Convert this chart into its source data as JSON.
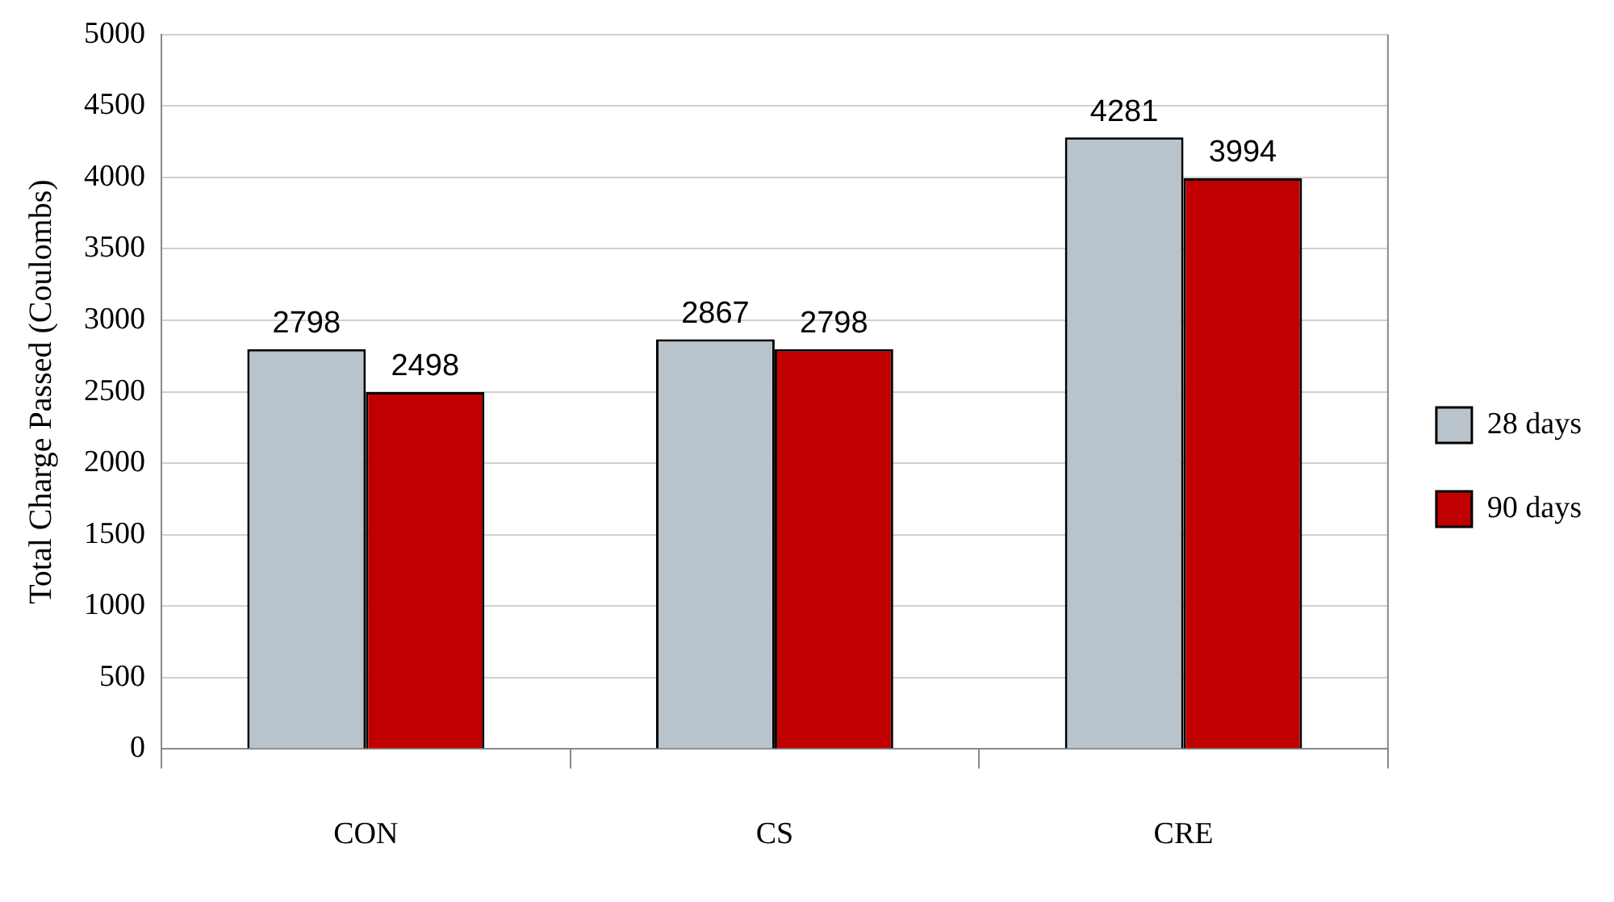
{
  "chart_data": {
    "type": "bar",
    "ylabel": "Total Charge Passed (Coulombs)",
    "categories": [
      "CON",
      "CS",
      "CRE"
    ],
    "series": [
      {
        "name": "28 days",
        "color": "#b9c3cb",
        "values": [
          2798,
          2867,
          4281
        ]
      },
      {
        "name": "90 days",
        "color": "#c00000",
        "values": [
          2498,
          2798,
          3994
        ]
      }
    ],
    "ylim": [
      0,
      5000
    ],
    "yticks": [
      0,
      500,
      1000,
      1500,
      2000,
      2500,
      3000,
      3500,
      4000,
      4500,
      5000
    ],
    "grid": "y",
    "legend": "right",
    "data_labels": true
  }
}
